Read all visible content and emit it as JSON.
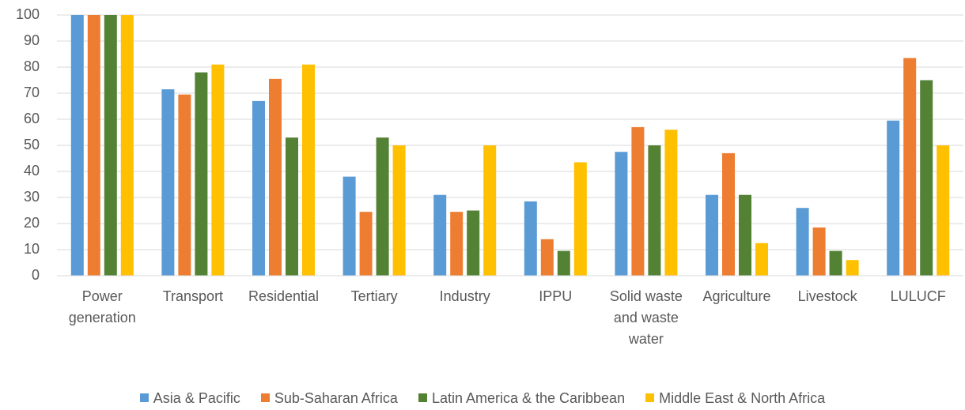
{
  "chart_data": {
    "type": "bar",
    "categories": [
      "Power generation",
      "Transport",
      "Residential",
      "Tertiary",
      "Industry",
      "IPPU",
      "Solid waste and waste water",
      "Agriculture",
      "Livestock",
      "LULUCF"
    ],
    "series": [
      {
        "name": "Asia & Pacific",
        "color": "#5b9bd5",
        "values": [
          100,
          71.5,
          67,
          38,
          31,
          28.5,
          47.5,
          31,
          26,
          59.5
        ]
      },
      {
        "name": "Sub-Saharan Africa",
        "color": "#ed7d31",
        "values": [
          100,
          69.5,
          75.5,
          24.5,
          24.5,
          14,
          57,
          47,
          18.5,
          83.5
        ]
      },
      {
        "name": "Latin America & the Caribbean",
        "color": "#548235",
        "values": [
          100,
          78,
          53,
          53,
          25,
          9.5,
          50,
          31,
          9.5,
          75
        ]
      },
      {
        "name": "Middle East & North Africa",
        "color": "#ffc000",
        "values": [
          100,
          81,
          81,
          50,
          50,
          43.5,
          56,
          12.5,
          6,
          50
        ]
      }
    ],
    "ylim": [
      0,
      100
    ],
    "yticks": [
      0,
      10,
      20,
      30,
      40,
      50,
      60,
      70,
      80,
      90,
      100
    ],
    "grid": true,
    "legend": "bottom"
  }
}
